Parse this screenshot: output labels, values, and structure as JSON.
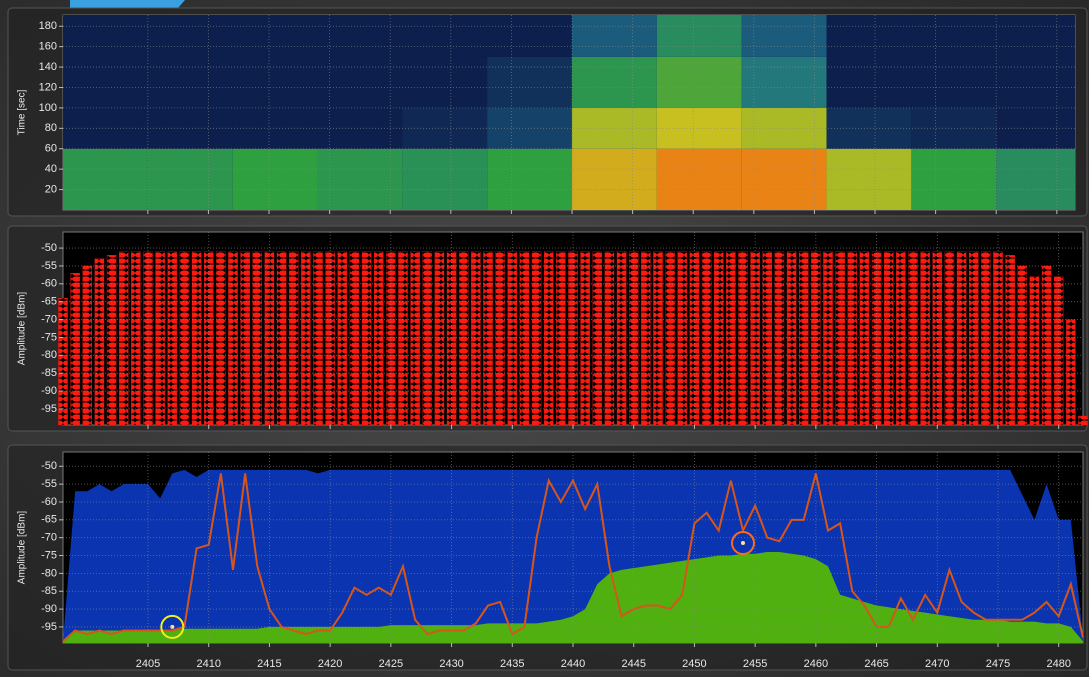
{
  "chart_data": [
    {
      "type": "heatmap",
      "ylabel": "Time [sec]",
      "xlim": [
        2398,
        2481.5
      ],
      "ylim": [
        0,
        191
      ],
      "xticks": [
        2405,
        2410,
        2415,
        2420,
        2425,
        2430,
        2435,
        2440,
        2445,
        2450,
        2455,
        2460,
        2465,
        2470,
        2475,
        2480
      ],
      "yticks": [
        20,
        40,
        60,
        80,
        100,
        120,
        140,
        160,
        180
      ],
      "xbins": [
        2398,
        2405,
        2412,
        2419,
        2426,
        2433,
        2440,
        2447,
        2454,
        2461,
        2468,
        2475,
        2481.5
      ],
      "ybins": [
        0,
        60,
        100,
        150,
        191
      ],
      "values": [
        [
          -82,
          -82,
          -80,
          -82,
          -83,
          -80,
          -68,
          -64,
          -64,
          -72,
          -80,
          -84
        ],
        [
          -99,
          -99,
          -99,
          -99,
          -98,
          -95,
          -72,
          -70,
          -72,
          -97,
          -98,
          -99
        ],
        [
          -99,
          -99,
          -99,
          -99,
          -99,
          -97,
          -82,
          -78,
          -88,
          -99,
          -99,
          -99
        ],
        [
          -99,
          -99,
          -99,
          -99,
          -99,
          -99,
          -92,
          -84,
          -92,
          -99,
          -99,
          -99
        ]
      ],
      "colorscale": [
        {
          "value": -100,
          "color": "#0b1646"
        },
        {
          "value": -90,
          "color": "#1f6e8a"
        },
        {
          "value": -80,
          "color": "#2fa040"
        },
        {
          "value": -70,
          "color": "#c8c020"
        },
        {
          "value": -60,
          "color": "#ff5a10"
        }
      ],
      "grid": true
    },
    {
      "type": "bar",
      "ylabel": "Amplitude [dBm]",
      "color": "#ff1a10",
      "xlim": [
        2398,
        2482
      ],
      "ylim": [
        -99.5,
        -45.5
      ],
      "xticks": [
        2405,
        2410,
        2415,
        2420,
        2425,
        2430,
        2435,
        2440,
        2445,
        2450,
        2455,
        2460,
        2465,
        2470,
        2475,
        2480
      ],
      "yticks": [
        -50,
        -55,
        -60,
        -65,
        -70,
        -75,
        -80,
        -85,
        -90,
        -95
      ],
      "x": [
        2398,
        2399,
        2400,
        2401,
        2402,
        2403,
        2404,
        2405,
        2406,
        2407,
        2408,
        2409,
        2410,
        2411,
        2412,
        2413,
        2414,
        2415,
        2416,
        2417,
        2418,
        2419,
        2420,
        2421,
        2422,
        2423,
        2424,
        2425,
        2426,
        2427,
        2428,
        2429,
        2430,
        2431,
        2432,
        2433,
        2434,
        2435,
        2436,
        2437,
        2438,
        2439,
        2440,
        2441,
        2442,
        2443,
        2444,
        2445,
        2446,
        2447,
        2448,
        2449,
        2450,
        2451,
        2452,
        2453,
        2454,
        2455,
        2456,
        2457,
        2458,
        2459,
        2460,
        2461,
        2462,
        2463,
        2464,
        2465,
        2466,
        2467,
        2468,
        2469,
        2470,
        2471,
        2472,
        2473,
        2474,
        2475,
        2476,
        2477,
        2478,
        2479,
        2480,
        2481,
        2482
      ],
      "values": [
        -64,
        -57,
        -55,
        -53,
        -52,
        -51,
        -51,
        -51,
        -51,
        -51,
        -51,
        -51,
        -51,
        -51,
        -51,
        -51,
        -51,
        -51,
        -51,
        -51,
        -51,
        -51,
        -51,
        -51,
        -51,
        -51,
        -51,
        -51,
        -51,
        -51,
        -51,
        -51,
        -51,
        -51,
        -51,
        -51,
        -51,
        -51,
        -51,
        -51,
        -51,
        -51,
        -51,
        -51,
        -51,
        -51,
        -51,
        -51,
        -51,
        -51,
        -51,
        -51,
        -51,
        -51,
        -51,
        -51,
        -51,
        -51,
        -51,
        -51,
        -51,
        -51,
        -51,
        -51,
        -51,
        -51,
        -51,
        -51,
        -51,
        -51,
        -51,
        -51,
        -51,
        -51,
        -51,
        -51,
        -51,
        -51,
        -52,
        -55,
        -58,
        -55,
        -58,
        -70,
        -97
      ],
      "grid": true
    },
    {
      "type": "area",
      "ylabel": "Amplitude [dBm]",
      "xlim": [
        2398,
        2482
      ],
      "ylim": [
        -99.5,
        -46
      ],
      "xticks": [
        2405,
        2410,
        2415,
        2420,
        2425,
        2430,
        2435,
        2440,
        2445,
        2450,
        2455,
        2460,
        2465,
        2470,
        2475,
        2480
      ],
      "yticks": [
        -50,
        -55,
        -60,
        -65,
        -70,
        -75,
        -80,
        -85,
        -90,
        -95
      ],
      "x": [
        2398,
        2399,
        2400,
        2401,
        2402,
        2403,
        2404,
        2405,
        2406,
        2407,
        2408,
        2409,
        2410,
        2411,
        2412,
        2413,
        2414,
        2415,
        2416,
        2417,
        2418,
        2419,
        2420,
        2421,
        2422,
        2423,
        2424,
        2425,
        2426,
        2427,
        2428,
        2429,
        2430,
        2431,
        2432,
        2433,
        2434,
        2435,
        2436,
        2437,
        2438,
        2439,
        2440,
        2441,
        2442,
        2443,
        2444,
        2445,
        2446,
        2447,
        2448,
        2449,
        2450,
        2451,
        2452,
        2453,
        2454,
        2455,
        2456,
        2457,
        2458,
        2459,
        2460,
        2461,
        2462,
        2463,
        2464,
        2465,
        2466,
        2467,
        2468,
        2469,
        2470,
        2471,
        2472,
        2473,
        2474,
        2475,
        2476,
        2477,
        2478,
        2479,
        2480,
        2481,
        2482
      ],
      "series": [
        {
          "style": "area",
          "color": "#0a34b0",
          "values": [
            -99,
            -57,
            -57,
            -55,
            -57,
            -55,
            -55,
            -55,
            -59,
            -52,
            -51,
            -53,
            -51,
            -51,
            -51,
            -51,
            -51,
            -51,
            -51,
            -51,
            -51,
            -52,
            -51,
            -51,
            -51,
            -51,
            -51,
            -51,
            -51,
            -51,
            -51,
            -51,
            -51,
            -51,
            -51,
            -51,
            -51,
            -51,
            -51,
            -51,
            -51,
            -51,
            -51,
            -51,
            -51,
            -51,
            -51,
            -51,
            -51,
            -51,
            -51,
            -51,
            -51,
            -51,
            -51,
            -51,
            -51,
            -51,
            -51,
            -51,
            -51,
            -51,
            -51,
            -51,
            -51,
            -51,
            -51,
            -51,
            -51,
            -51,
            -51,
            -51,
            -51,
            -51,
            -51,
            -51,
            -51,
            -51,
            -51,
            -58,
            -65,
            -55,
            -65,
            -65,
            -98
          ]
        },
        {
          "style": "area",
          "color": "#4fb010",
          "values": [
            -99,
            -96,
            -96,
            -96,
            -96,
            -96,
            -96,
            -96,
            -96,
            -96,
            -95.5,
            -95.5,
            -95.5,
            -95.5,
            -95.5,
            -95.5,
            -95.5,
            -95,
            -95,
            -95,
            -95,
            -95,
            -95,
            -95,
            -95,
            -95,
            -95,
            -94.5,
            -94.5,
            -94.5,
            -94.5,
            -94.5,
            -94.5,
            -94.5,
            -94.5,
            -94,
            -94,
            -94,
            -94,
            -94,
            -93.5,
            -93,
            -92,
            -90,
            -83,
            -80,
            -79,
            -78.5,
            -78,
            -77.5,
            -77,
            -76.5,
            -76,
            -75.5,
            -75,
            -75,
            -74.5,
            -74.5,
            -74,
            -74,
            -74.5,
            -75,
            -76,
            -78,
            -86,
            -87,
            -88,
            -89,
            -89.5,
            -90,
            -90.5,
            -91,
            -91.5,
            -92,
            -92.5,
            -93,
            -93,
            -93,
            -93.5,
            -93.5,
            -93.5,
            -94,
            -94,
            -95,
            -99
          ]
        },
        {
          "style": "line",
          "color": "#d8551a",
          "values": [
            -99,
            -96,
            -97,
            -96,
            -97,
            -96,
            -96,
            -96,
            -96,
            -96,
            -95,
            -73,
            -72,
            -52,
            -79,
            -52,
            -78,
            -90,
            -95,
            -96,
            -97,
            -96,
            -96,
            -91,
            -84,
            -86,
            -84,
            -86,
            -78,
            -93,
            -97,
            -96,
            -96,
            -96,
            -94,
            -89,
            -88,
            -97,
            -95,
            -70,
            -54,
            -60,
            -54,
            -62,
            -55,
            -78,
            -92,
            -90,
            -89,
            -89,
            -90,
            -86,
            -66,
            -63,
            -68,
            -54,
            -68,
            -61,
            -70,
            -71,
            -65,
            -65,
            -52,
            -68,
            -66,
            -85,
            -89,
            -95,
            -95,
            -87,
            -93,
            -86,
            -91,
            -79,
            -88,
            -91,
            -93,
            -93,
            -93,
            -93,
            -91,
            -88,
            -92,
            -83,
            -98
          ]
        }
      ],
      "markers": [
        {
          "x": 2407,
          "y": -95,
          "color": "#f0f020"
        },
        {
          "x": 2454,
          "y": -71.5,
          "color": "#ff6a1a"
        }
      ],
      "grid": true
    }
  ]
}
